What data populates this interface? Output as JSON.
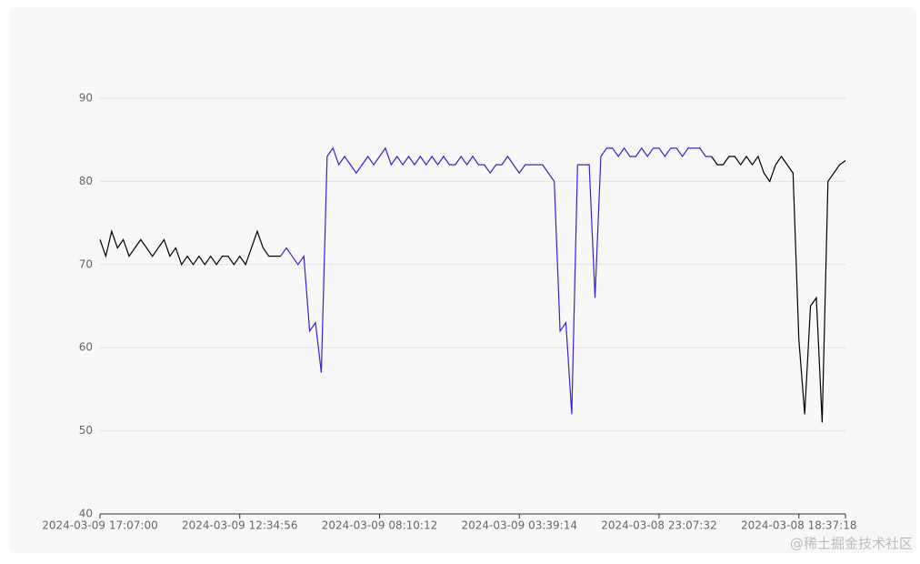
{
  "chart_data": {
    "type": "line",
    "categories": [
      "2024-03-09 17:07:00",
      null,
      null,
      null,
      null,
      null,
      null,
      null,
      null,
      null,
      null,
      null,
      null,
      null,
      null,
      null,
      null,
      null,
      null,
      null,
      null,
      null,
      null,
      null,
      "2024-03-09 12:34:56",
      null,
      null,
      null,
      null,
      null,
      null,
      null,
      null,
      null,
      null,
      null,
      null,
      null,
      null,
      null,
      null,
      null,
      null,
      null,
      null,
      null,
      null,
      null,
      "2024-03-09 08:10:12",
      null,
      null,
      null,
      null,
      null,
      null,
      null,
      null,
      null,
      null,
      null,
      null,
      null,
      null,
      null,
      null,
      null,
      null,
      null,
      null,
      null,
      null,
      null,
      "2024-03-09 03:39:14",
      null,
      null,
      null,
      null,
      null,
      null,
      null,
      null,
      null,
      null,
      null,
      null,
      null,
      null,
      null,
      null,
      null,
      null,
      null,
      null,
      null,
      null,
      null,
      "2024-03-08 23:07:32",
      null,
      null,
      null,
      null,
      null,
      null,
      null,
      null,
      null,
      null,
      null,
      null,
      null,
      null,
      null,
      null,
      null,
      null,
      null,
      null,
      null,
      null,
      null,
      "2024-03-08 18:37:18",
      null,
      null,
      null,
      null,
      null,
      null,
      null,
      null
    ],
    "series": [
      {
        "color": "#000000",
        "values": [
          73,
          71,
          74,
          72,
          73,
          71,
          72,
          73,
          72,
          71,
          72,
          73,
          71,
          72,
          70,
          71,
          70,
          71,
          70,
          71,
          70,
          71,
          71,
          70,
          71,
          70,
          72,
          74,
          72,
          71,
          71,
          71,
          null,
          null,
          null,
          null,
          null,
          null,
          null,
          null,
          null,
          null,
          null,
          null,
          null,
          null,
          null,
          null,
          null,
          null,
          null,
          null,
          null,
          null,
          null,
          null,
          null,
          null,
          null,
          null,
          null,
          null,
          null,
          null,
          null,
          null,
          null,
          null,
          null,
          null,
          null,
          null,
          null,
          null,
          null,
          null,
          null,
          null,
          null,
          null,
          null,
          null,
          null,
          null,
          null,
          null,
          null,
          null,
          null,
          null,
          null,
          null,
          null,
          null,
          null,
          null,
          null,
          null,
          null,
          null,
          null,
          null,
          null,
          null,
          null,
          83,
          82,
          82,
          83,
          83,
          82,
          83,
          82,
          83,
          81,
          80,
          82,
          83,
          82,
          81,
          61,
          52,
          65,
          66,
          51,
          80,
          81,
          82,
          82.5
        ]
      },
      {
        "color": "#3a1fd6",
        "values": [
          null,
          null,
          null,
          null,
          null,
          null,
          null,
          null,
          null,
          null,
          null,
          null,
          null,
          null,
          null,
          null,
          null,
          null,
          null,
          null,
          null,
          null,
          null,
          null,
          null,
          null,
          null,
          null,
          null,
          null,
          null,
          71,
          72,
          71,
          70,
          71,
          62,
          63,
          57,
          83,
          84,
          82,
          83,
          82,
          81,
          82,
          83,
          82,
          83,
          84,
          82,
          83,
          82,
          83,
          82,
          83,
          82,
          83,
          82,
          83,
          82,
          82,
          83,
          82,
          83,
          82,
          82,
          81,
          82,
          82,
          83,
          82,
          81,
          82,
          82,
          82,
          82,
          81,
          80,
          62,
          63,
          52,
          82,
          82,
          82,
          66,
          83,
          84,
          84,
          83,
          84,
          83,
          83,
          84,
          83,
          84,
          84,
          83,
          84,
          84,
          83,
          84,
          84,
          84,
          83,
          83,
          null,
          null,
          null,
          null,
          null,
          null,
          null,
          null,
          null,
          null,
          null,
          null,
          null,
          null,
          null,
          null,
          null,
          null,
          null,
          null,
          null,
          null,
          null
        ]
      }
    ],
    "ylim": [
      40,
      90
    ],
    "yticks": [
      40,
      50,
      60,
      70,
      80,
      90
    ],
    "grid": true
  },
  "watermark": "@稀土掘金技术社区"
}
